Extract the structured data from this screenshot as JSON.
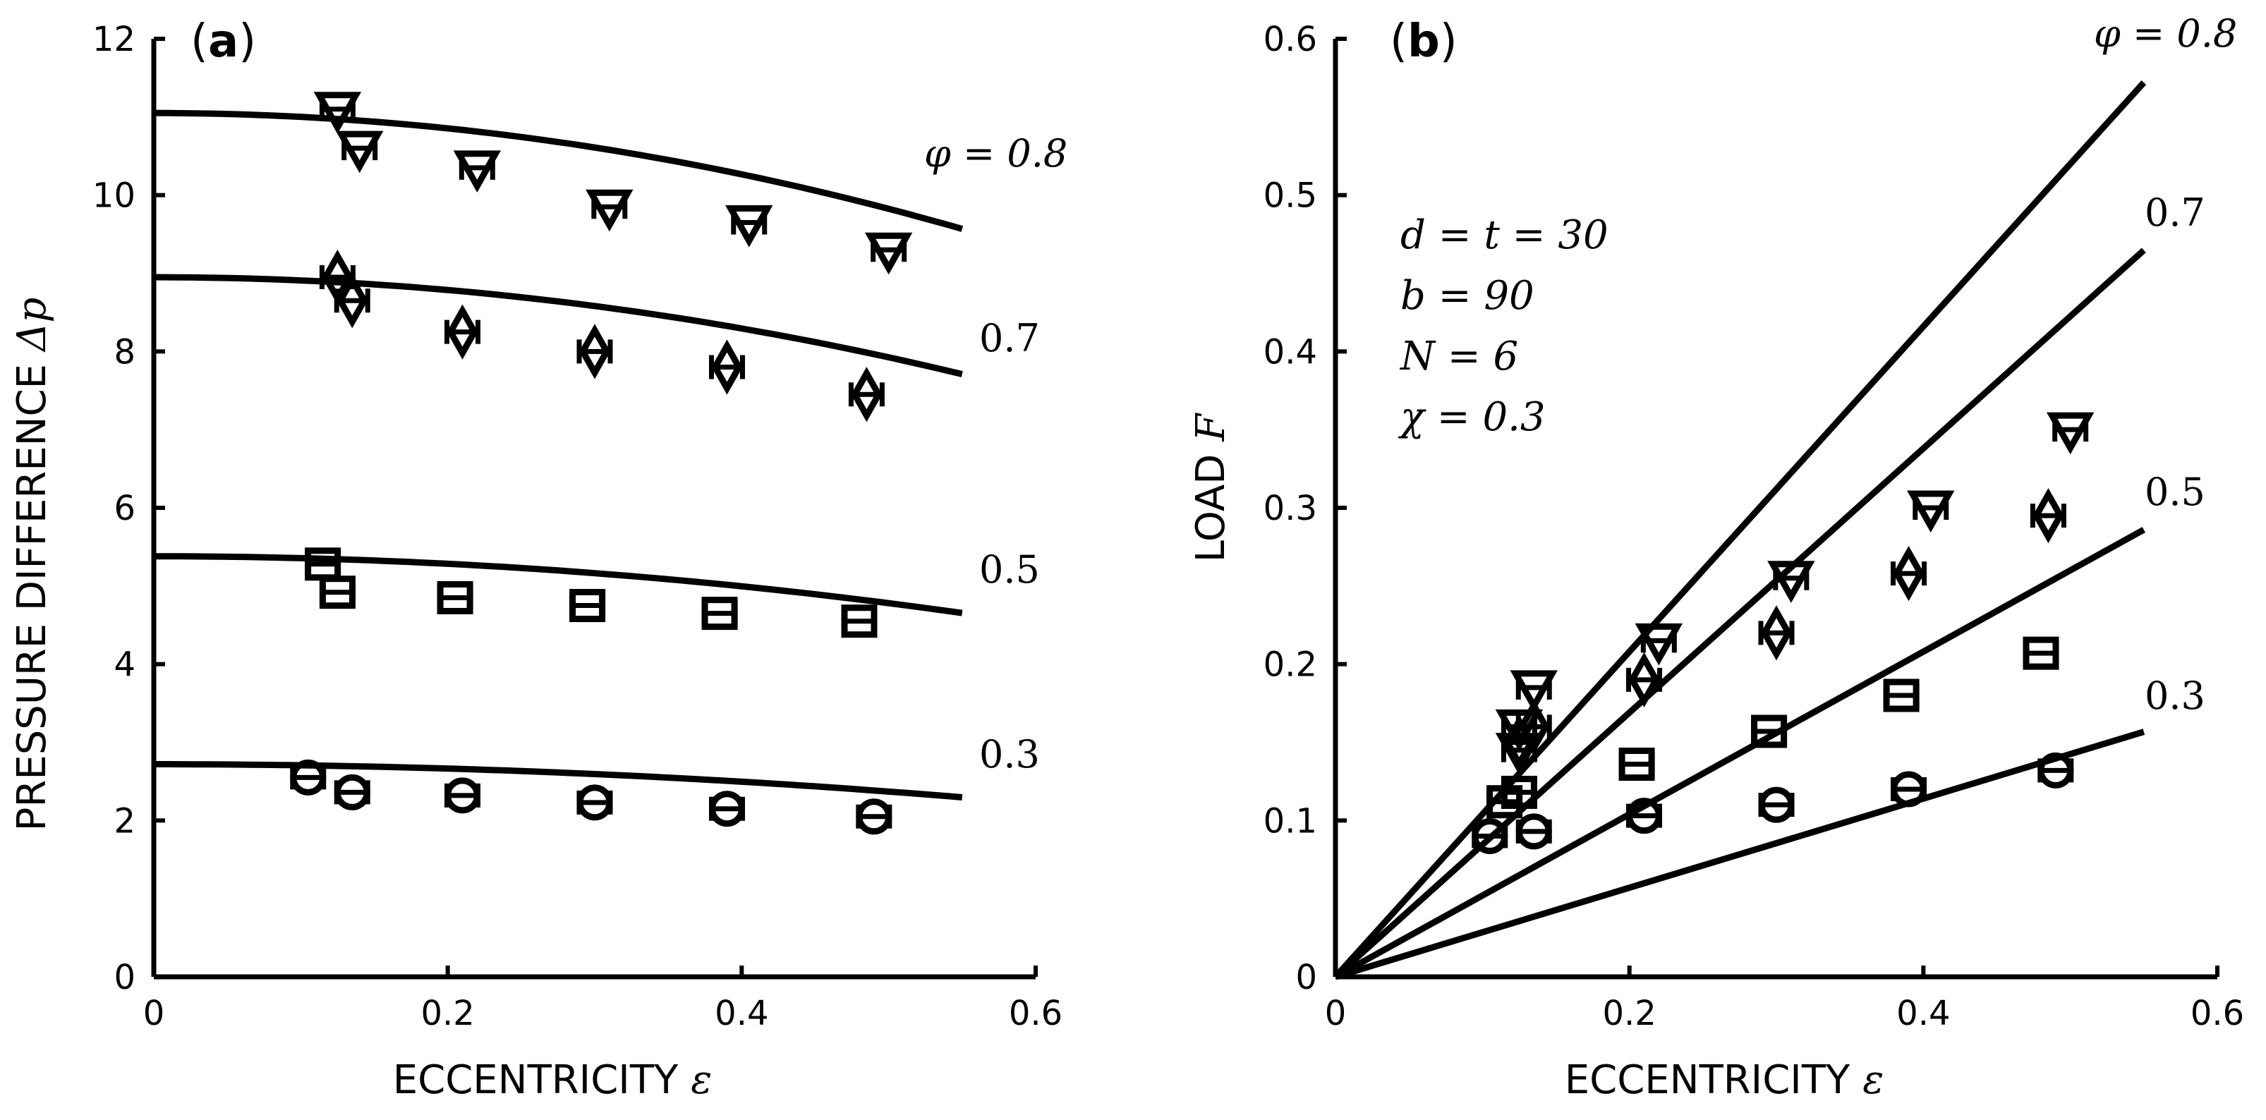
{
  "figure": {
    "panels": [
      {
        "id": "a",
        "tag_open": "(",
        "tag_letter": "a",
        "tag_close": ")",
        "xlabel_text": "ECCENTRICITY",
        "xlabel_symbol": "ε",
        "ylabel_text": "PRESSURE DIFFERENCE",
        "ylabel_symbol": "Δp",
        "x_ticks": [
          "0",
          "0.2",
          "0.4",
          "0.6"
        ],
        "y_ticks": [
          "0",
          "2",
          "4",
          "6",
          "8",
          "10",
          "12"
        ]
      },
      {
        "id": "b",
        "tag_open": "(",
        "tag_letter": "b",
        "tag_close": ")",
        "xlabel_text": "ECCENTRICITY",
        "xlabel_symbol": "ε",
        "ylabel_text": "LOAD",
        "ylabel_symbol": "F",
        "x_ticks": [
          "0",
          "0.2",
          "0.4",
          "0.6"
        ],
        "y_ticks": [
          "0",
          "0.1",
          "0.2",
          "0.3",
          "0.4",
          "0.5",
          "0.6"
        ],
        "params": [
          "d = t = 30",
          "b = 90",
          "N = 6",
          "χ = 0.3"
        ]
      }
    ]
  },
  "chart_data": [
    {
      "type": "scatter",
      "panel": "a",
      "xlabel": "ECCENTRICITY ε",
      "ylabel": "PRESSURE DIFFERENCE Δp",
      "xlim": [
        0,
        0.6
      ],
      "ylim": [
        0,
        12
      ],
      "series": [
        {
          "name": "φ = 0.8",
          "label": "φ = 0.8",
          "marker": "triangle-down",
          "curve": {
            "a": 11.05,
            "b": 4.9,
            "xmax": 0.55
          },
          "points": [
            [
              0.125,
              11.1
            ],
            [
              0.14,
              10.6
            ],
            [
              0.22,
              10.35
            ],
            [
              0.31,
              9.85
            ],
            [
              0.405,
              9.65
            ],
            [
              0.5,
              9.3
            ]
          ]
        },
        {
          "name": "φ = 0.7",
          "label": "0.7",
          "marker": "diamond",
          "curve": {
            "a": 8.95,
            "b": 4.1,
            "xmax": 0.55
          },
          "points": [
            [
              0.125,
              8.95
            ],
            [
              0.135,
              8.65
            ],
            [
              0.21,
              8.25
            ],
            [
              0.3,
              8.0
            ],
            [
              0.39,
              7.8
            ],
            [
              0.485,
              7.45
            ]
          ]
        },
        {
          "name": "φ = 0.5",
          "label": "0.5",
          "marker": "square",
          "curve": {
            "a": 5.38,
            "b": 2.4,
            "xmax": 0.55
          },
          "points": [
            [
              0.115,
              5.28
            ],
            [
              0.125,
              4.92
            ],
            [
              0.205,
              4.85
            ],
            [
              0.295,
              4.75
            ],
            [
              0.385,
              4.65
            ],
            [
              0.48,
              4.55
            ]
          ]
        },
        {
          "name": "φ = 0.3",
          "label": "0.3",
          "marker": "circle",
          "curve": {
            "a": 2.72,
            "b": 1.4,
            "xmax": 0.55
          },
          "points": [
            [
              0.105,
              2.55
            ],
            [
              0.135,
              2.36
            ],
            [
              0.21,
              2.32
            ],
            [
              0.3,
              2.23
            ],
            [
              0.39,
              2.15
            ],
            [
              0.49,
              2.05
            ]
          ]
        }
      ]
    },
    {
      "type": "scatter",
      "panel": "b",
      "xlabel": "ECCENTRICITY ε",
      "ylabel": "LOAD F",
      "xlim": [
        0,
        0.6
      ],
      "ylim": [
        0,
        0.6
      ],
      "series": [
        {
          "name": "φ = 0.8",
          "label": "φ = 0.8",
          "marker": "triangle-down",
          "line": {
            "slope": 1.04,
            "xmax": 0.55
          },
          "points": [
            [
              0.125,
              0.16
            ],
            [
              0.135,
              0.185
            ],
            [
              0.125,
              0.145
            ],
            [
              0.22,
              0.215
            ],
            [
              0.31,
              0.255
            ],
            [
              0.405,
              0.3
            ],
            [
              0.5,
              0.35
            ]
          ]
        },
        {
          "name": "φ = 0.7",
          "label": "0.7",
          "marker": "diamond",
          "line": {
            "slope": 0.845,
            "xmax": 0.55
          },
          "points": [
            [
              0.125,
              0.15
            ],
            [
              0.135,
              0.16
            ],
            [
              0.21,
              0.19
            ],
            [
              0.3,
              0.22
            ],
            [
              0.39,
              0.258
            ],
            [
              0.485,
              0.295
            ]
          ]
        },
        {
          "name": "φ = 0.5",
          "label": "0.5",
          "marker": "square",
          "line": {
            "slope": 0.52,
            "xmax": 0.55
          },
          "points": [
            [
              0.115,
              0.112
            ],
            [
              0.125,
              0.118
            ],
            [
              0.205,
              0.136
            ],
            [
              0.295,
              0.157
            ],
            [
              0.385,
              0.18
            ],
            [
              0.48,
              0.207
            ]
          ]
        },
        {
          "name": "φ = 0.3",
          "label": "0.3",
          "marker": "circle",
          "line": {
            "slope": 0.285,
            "xmax": 0.55
          },
          "points": [
            [
              0.105,
              0.09
            ],
            [
              0.135,
              0.093
            ],
            [
              0.21,
              0.103
            ],
            [
              0.3,
              0.11
            ],
            [
              0.39,
              0.12
            ],
            [
              0.49,
              0.132
            ]
          ]
        }
      ]
    }
  ]
}
